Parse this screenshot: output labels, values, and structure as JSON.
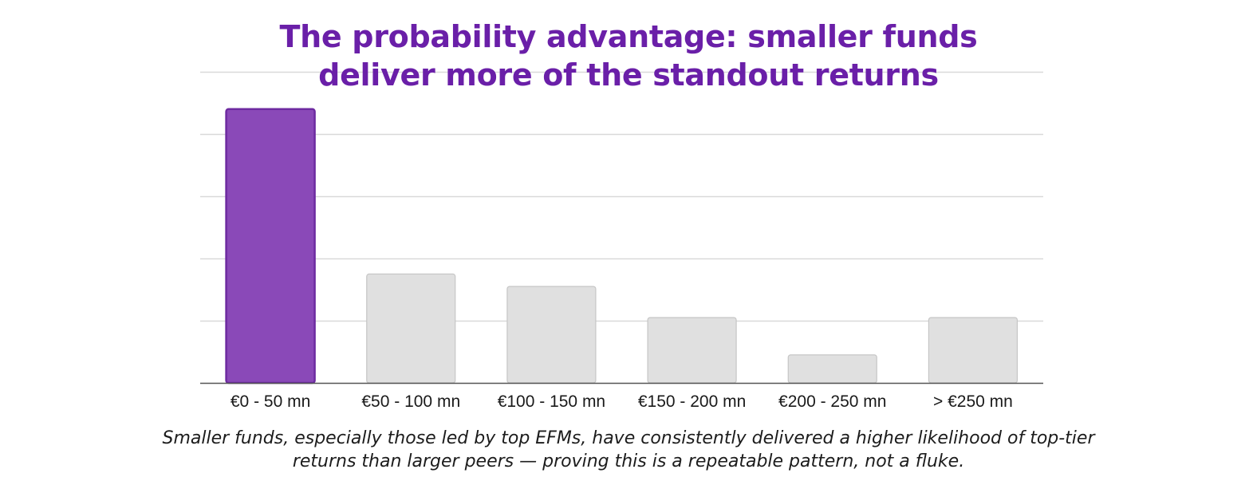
{
  "chart_data": {
    "type": "bar",
    "title_lines": [
      "The probability advantage: smaller funds",
      "deliver more of the standout returns"
    ],
    "categories": [
      "€0 - 50 mn",
      "€50 - 100 mn",
      "€100 - 150 mn",
      "€150 - 200 mn",
      "€200 - 250 mn",
      "> €250 mn"
    ],
    "values": [
      44,
      17.5,
      15.5,
      10.5,
      4.5,
      10.5
    ],
    "highlight_index": 0,
    "ylim": [
      0,
      50
    ],
    "ytick_step": 10,
    "grid": true,
    "xlabel": "",
    "ylabel": "",
    "colors": {
      "highlight": "#8a49b8",
      "highlight_border": "#6d2aa0",
      "bar": "#e0e0e0",
      "bar_border": "#c6c6c6",
      "grid": "#d9d9d9",
      "axis": "#555555"
    }
  },
  "caption_lines": [
    "Smaller funds, especially those led by top EFMs, have consistently delivered a higher likelihood of top-tier",
    "returns than larger peers — proving this is a repeatable pattern, not a fluke."
  ]
}
